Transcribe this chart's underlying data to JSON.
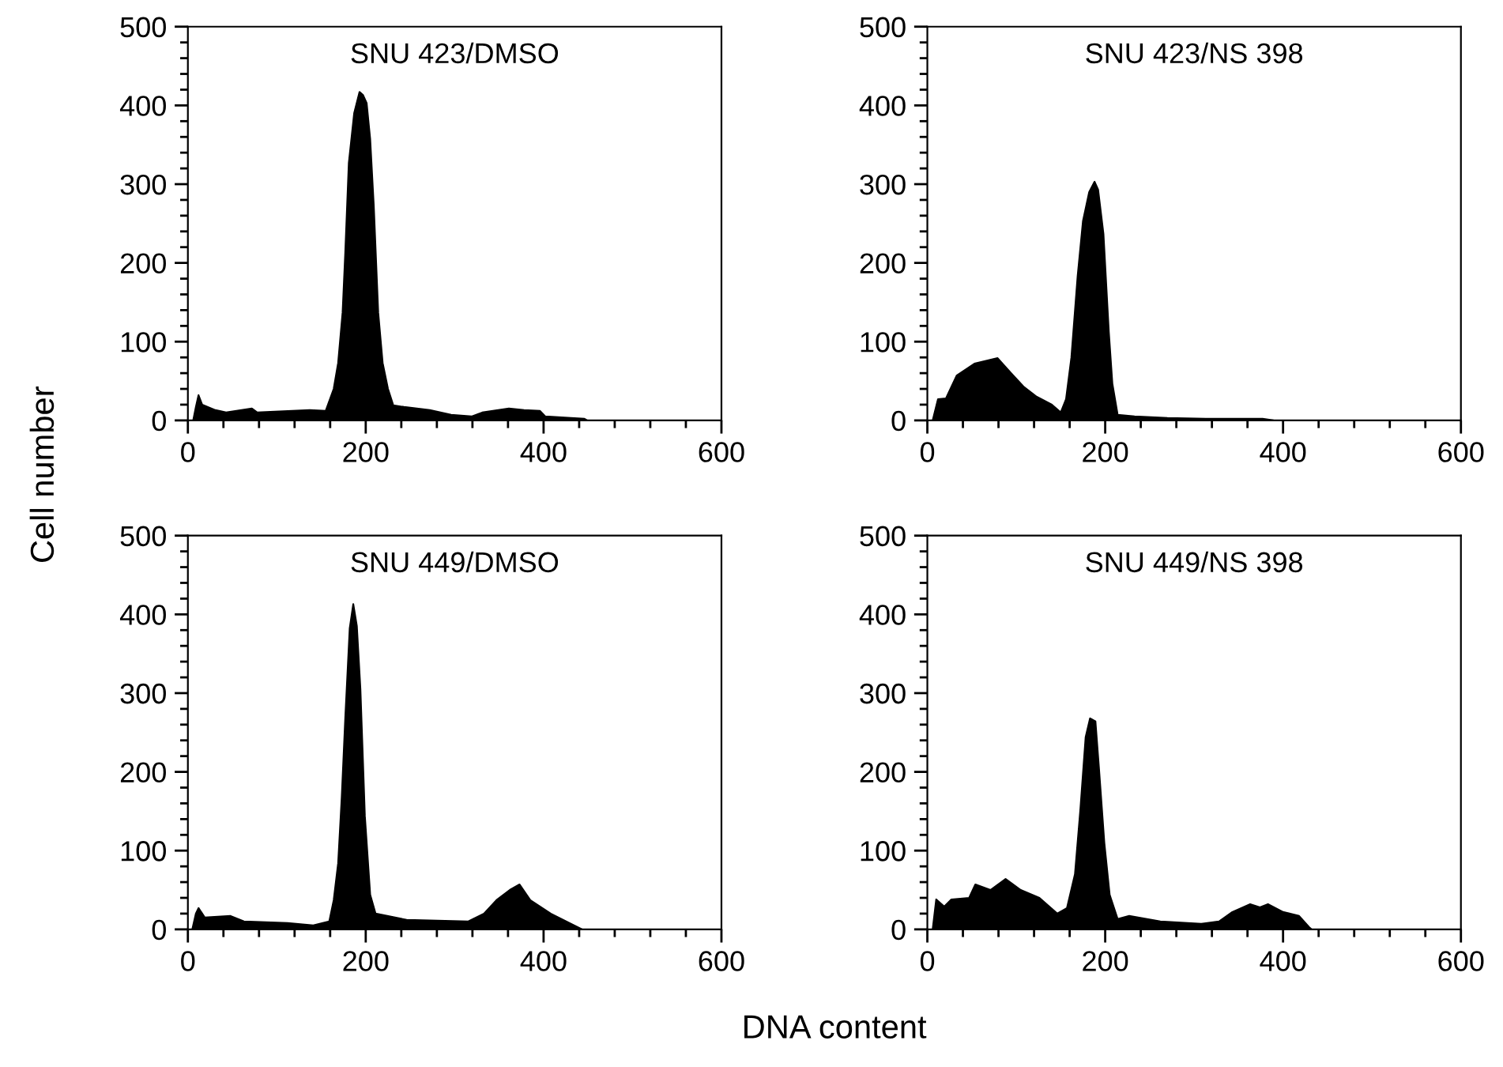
{
  "chart_data": [
    {
      "type": "area",
      "title": "SNU 423/DMSO",
      "ylabel": "Cell number",
      "xlim": [
        0,
        600
      ],
      "ylim": [
        0,
        500
      ],
      "xticks": [
        0,
        {
          "value": 40,
          "label": null
        },
        {
          "value": 80,
          "label": null
        },
        {
          "value": 120,
          "label": null
        },
        {
          "value": 160,
          "label": null
        },
        200,
        {
          "value": 240,
          "label": null
        },
        {
          "value": 280,
          "label": null
        },
        {
          "value": 320,
          "label": null
        },
        {
          "value": 360,
          "label": null
        },
        400,
        {
          "value": 440,
          "label": null
        },
        {
          "value": 480,
          "label": null
        },
        {
          "value": 520,
          "label": null
        },
        {
          "value": 560,
          "label": null
        },
        600
      ],
      "yticks": [
        0,
        {
          "value": 20,
          "label": null
        },
        {
          "value": 40,
          "label": null
        },
        {
          "value": 60,
          "label": null
        },
        {
          "value": 80,
          "label": null
        },
        100,
        {
          "value": 120,
          "label": null
        },
        {
          "value": 140,
          "label": null
        },
        {
          "value": 160,
          "label": null
        },
        {
          "value": 180,
          "label": null
        },
        200,
        {
          "value": 220,
          "label": null
        },
        {
          "value": 240,
          "label": null
        },
        {
          "value": 260,
          "label": null
        },
        {
          "value": 280,
          "label": null
        },
        300,
        {
          "value": 320,
          "label": null
        },
        {
          "value": 340,
          "label": null
        },
        {
          "value": 360,
          "label": null
        },
        {
          "value": 380,
          "label": null
        },
        400,
        {
          "value": 420,
          "label": null
        },
        {
          "value": 440,
          "label": null
        },
        {
          "value": 460,
          "label": null
        },
        {
          "value": 480,
          "label": null
        },
        500
      ],
      "grid": false,
      "legend": false,
      "series": [
        {
          "color": "#000000",
          "x": [
            6,
            9,
            12,
            16,
            31,
            43,
            72,
            78,
            137,
            155,
            164,
            169,
            174,
            177,
            181,
            187,
            193,
            197,
            201,
            205,
            209,
            214,
            219,
            225,
            231,
            243,
            272,
            296,
            319,
            331,
            361,
            378,
            396,
            402,
            431,
            446,
            449
          ],
          "values": [
            0,
            17,
            32,
            20,
            13,
            10,
            15,
            10,
            13,
            12,
            40,
            73,
            137,
            213,
            327,
            390,
            417,
            413,
            403,
            357,
            273,
            137,
            73,
            40,
            19,
            17,
            13,
            7,
            5,
            10,
            15,
            13,
            12,
            5,
            3,
            2,
            0
          ]
        }
      ]
    },
    {
      "type": "area",
      "title": "SNU 423/NS 398",
      "xlim": [
        0,
        600
      ],
      "ylim": [
        0,
        500
      ],
      "xticks": [
        0,
        {
          "value": 40,
          "label": null
        },
        {
          "value": 80,
          "label": null
        },
        {
          "value": 120,
          "label": null
        },
        {
          "value": 160,
          "label": null
        },
        200,
        {
          "value": 240,
          "label": null
        },
        {
          "value": 280,
          "label": null
        },
        {
          "value": 320,
          "label": null
        },
        {
          "value": 360,
          "label": null
        },
        400,
        {
          "value": 440,
          "label": null
        },
        {
          "value": 480,
          "label": null
        },
        {
          "value": 520,
          "label": null
        },
        {
          "value": 560,
          "label": null
        },
        600
      ],
      "yticks": [
        0,
        {
          "value": 20,
          "label": null
        },
        {
          "value": 40,
          "label": null
        },
        {
          "value": 60,
          "label": null
        },
        {
          "value": 80,
          "label": null
        },
        100,
        {
          "value": 120,
          "label": null
        },
        {
          "value": 140,
          "label": null
        },
        {
          "value": 160,
          "label": null
        },
        {
          "value": 180,
          "label": null
        },
        200,
        {
          "value": 220,
          "label": null
        },
        {
          "value": 240,
          "label": null
        },
        {
          "value": 260,
          "label": null
        },
        {
          "value": 280,
          "label": null
        },
        300,
        {
          "value": 320,
          "label": null
        },
        {
          "value": 340,
          "label": null
        },
        {
          "value": 360,
          "label": null
        },
        {
          "value": 380,
          "label": null
        },
        400,
        {
          "value": 420,
          "label": null
        },
        {
          "value": 440,
          "label": null
        },
        {
          "value": 460,
          "label": null
        },
        {
          "value": 480,
          "label": null
        },
        500
      ],
      "grid": false,
      "legend": false,
      "series": [
        {
          "color": "#000000",
          "x": [
            6,
            12,
            21,
            33,
            53,
            79,
            94,
            108,
            123,
            140,
            150,
            156,
            162,
            169,
            175,
            182,
            188,
            192,
            198,
            204,
            208,
            214,
            233,
            270,
            319,
            377,
            389
          ],
          "values": [
            0,
            27,
            28,
            57,
            72,
            79,
            60,
            43,
            30,
            20,
            10,
            27,
            80,
            183,
            253,
            290,
            303,
            293,
            237,
            113,
            47,
            7,
            5,
            3,
            2,
            2,
            0
          ]
        }
      ]
    },
    {
      "type": "area",
      "title": "SNU 449/DMSO",
      "xlabel": "DNA content",
      "xlim": [
        0,
        600
      ],
      "ylim": [
        0,
        500
      ],
      "xticks": [
        0,
        {
          "value": 40,
          "label": null
        },
        {
          "value": 80,
          "label": null
        },
        {
          "value": 120,
          "label": null
        },
        {
          "value": 160,
          "label": null
        },
        200,
        {
          "value": 240,
          "label": null
        },
        {
          "value": 280,
          "label": null
        },
        {
          "value": 320,
          "label": null
        },
        {
          "value": 360,
          "label": null
        },
        400,
        {
          "value": 440,
          "label": null
        },
        {
          "value": 480,
          "label": null
        },
        {
          "value": 520,
          "label": null
        },
        {
          "value": 560,
          "label": null
        },
        600
      ],
      "yticks": [
        0,
        {
          "value": 20,
          "label": null
        },
        {
          "value": 40,
          "label": null
        },
        {
          "value": 60,
          "label": null
        },
        {
          "value": 80,
          "label": null
        },
        100,
        {
          "value": 120,
          "label": null
        },
        {
          "value": 140,
          "label": null
        },
        {
          "value": 160,
          "label": null
        },
        {
          "value": 180,
          "label": null
        },
        200,
        {
          "value": 220,
          "label": null
        },
        {
          "value": 240,
          "label": null
        },
        {
          "value": 260,
          "label": null
        },
        {
          "value": 280,
          "label": null
        },
        300,
        {
          "value": 320,
          "label": null
        },
        {
          "value": 340,
          "label": null
        },
        {
          "value": 360,
          "label": null
        },
        {
          "value": 380,
          "label": null
        },
        400,
        {
          "value": 420,
          "label": null
        },
        {
          "value": 440,
          "label": null
        },
        {
          "value": 460,
          "label": null
        },
        {
          "value": 480,
          "label": null
        },
        500
      ],
      "grid": false,
      "legend": false,
      "series": [
        {
          "color": "#000000",
          "x": [
            5,
            9,
            12,
            19,
            48,
            63,
            112,
            141,
            159,
            164,
            169,
            173,
            177,
            182,
            186,
            190,
            194,
            199,
            205,
            211,
            246,
            315,
            333,
            347,
            362,
            373,
            385,
            408,
            431,
            443
          ],
          "values": [
            0,
            20,
            27,
            15,
            17,
            10,
            8,
            5,
            10,
            37,
            84,
            167,
            268,
            382,
            413,
            385,
            305,
            144,
            44,
            20,
            12,
            10,
            20,
            37,
            50,
            57,
            37,
            20,
            7,
            0
          ]
        }
      ]
    },
    {
      "type": "area",
      "title": "SNU 449/NS 398",
      "xlim": [
        0,
        600
      ],
      "ylim": [
        0,
        500
      ],
      "xticks": [
        0,
        {
          "value": 40,
          "label": null
        },
        {
          "value": 80,
          "label": null
        },
        {
          "value": 120,
          "label": null
        },
        {
          "value": 160,
          "label": null
        },
        200,
        {
          "value": 240,
          "label": null
        },
        {
          "value": 280,
          "label": null
        },
        {
          "value": 320,
          "label": null
        },
        {
          "value": 360,
          "label": null
        },
        400,
        {
          "value": 440,
          "label": null
        },
        {
          "value": 480,
          "label": null
        },
        {
          "value": 520,
          "label": null
        },
        {
          "value": 560,
          "label": null
        },
        600
      ],
      "yticks": [
        0,
        {
          "value": 20,
          "label": null
        },
        {
          "value": 40,
          "label": null
        },
        {
          "value": 60,
          "label": null
        },
        {
          "value": 80,
          "label": null
        },
        100,
        {
          "value": 120,
          "label": null
        },
        {
          "value": 140,
          "label": null
        },
        {
          "value": 160,
          "label": null
        },
        {
          "value": 180,
          "label": null
        },
        200,
        {
          "value": 220,
          "label": null
        },
        {
          "value": 240,
          "label": null
        },
        {
          "value": 260,
          "label": null
        },
        {
          "value": 280,
          "label": null
        },
        300,
        {
          "value": 320,
          "label": null
        },
        {
          "value": 340,
          "label": null
        },
        {
          "value": 360,
          "label": null
        },
        {
          "value": 380,
          "label": null
        },
        400,
        {
          "value": 420,
          "label": null
        },
        {
          "value": 440,
          "label": null
        },
        {
          "value": 460,
          "label": null
        },
        {
          "value": 480,
          "label": null
        },
        500
      ],
      "grid": false,
      "legend": false,
      "series": [
        {
          "color": "#000000",
          "x": [
            6,
            10,
            19,
            27,
            47,
            54,
            71,
            88,
            105,
            126,
            146,
            157,
            166,
            172,
            178,
            183,
            189,
            193,
            199,
            205,
            214,
            227,
            262,
            308,
            328,
            343,
            363,
            374,
            383,
            400,
            418,
            429,
            432
          ],
          "values": [
            0,
            38,
            29,
            38,
            40,
            57,
            50,
            64,
            50,
            40,
            20,
            27,
            70,
            151,
            244,
            268,
            264,
            204,
            110,
            44,
            13,
            17,
            10,
            7,
            10,
            22,
            32,
            28,
            32,
            22,
            17,
            3,
            0
          ]
        }
      ]
    }
  ]
}
